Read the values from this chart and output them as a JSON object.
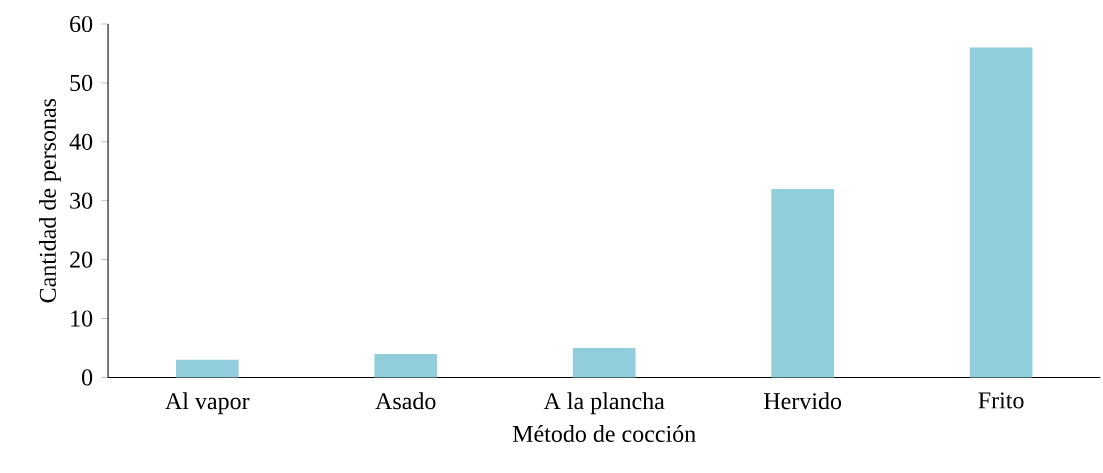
{
  "chart_data": {
    "type": "bar",
    "xlabel": "Método de cocción",
    "ylabel": "Cantidad de personas",
    "categories": [
      "Al vapor",
      "Asado",
      "A la plancha",
      "Hervido",
      "Frito"
    ],
    "values": [
      3,
      4,
      5,
      32,
      56
    ],
    "color": "#92cddc",
    "ylim": [
      0,
      60
    ],
    "yticks": [
      0,
      10,
      20,
      30,
      40,
      50,
      60
    ],
    "grid": false
  }
}
